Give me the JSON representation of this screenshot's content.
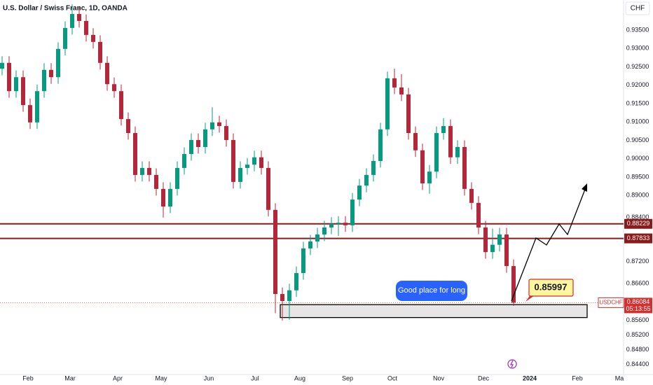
{
  "chart_data": {
    "type": "candlestick",
    "title": "U.S. Dollar / Swiss Franc, 1D, OANDA",
    "currency": "CHF",
    "up_color": "#089981",
    "down_color": "#b2283a",
    "open": [
      0.9245,
      0.9261,
      0.9184,
      0.9222,
      0.9146,
      0.9099,
      0.9184,
      0.9242,
      0.9222,
      0.9299,
      0.9356,
      0.9394,
      0.9375,
      0.9337,
      0.9318,
      0.9261,
      0.9203,
      0.9184,
      0.9108,
      0.907,
      0.8956,
      0.8975,
      0.8956,
      0.8918,
      0.887,
      0.8918,
      0.8975,
      0.9013,
      0.9051,
      0.9032,
      0.908,
      0.9099,
      0.9089,
      0.9051,
      0.8937,
      0.8975,
      0.8984,
      0.9004,
      0.8975,
      0.8861,
      0.8632,
      0.8613,
      0.8642,
      0.8689,
      0.8756,
      0.8775,
      0.8794,
      0.8813,
      0.8823,
      0.8826,
      0.8819,
      0.8889,
      0.8927,
      0.8956,
      0.8994,
      0.908,
      0.9219,
      0.9194,
      0.9175,
      0.907,
      0.9023,
      0.8933,
      0.8965,
      0.907,
      0.9089,
      0.9004,
      0.9032,
      0.8918,
      0.888,
      0.8813,
      0.8746,
      0.8766,
      0.8794,
      0.8708
    ],
    "high": [
      0.9279,
      0.9279,
      0.924,
      0.924,
      0.9164,
      0.9202,
      0.926,
      0.926,
      0.9317,
      0.9374,
      0.942,
      0.9412,
      0.9393,
      0.9355,
      0.9336,
      0.9279,
      0.9221,
      0.9202,
      0.9126,
      0.9088,
      0.8993,
      0.8993,
      0.8974,
      0.8936,
      0.8936,
      0.8993,
      0.9031,
      0.9069,
      0.9069,
      0.9098,
      0.914,
      0.9117,
      0.9107,
      0.9069,
      0.8993,
      0.9002,
      0.9022,
      0.9022,
      0.8993,
      0.8879,
      0.865,
      0.866,
      0.8707,
      0.8774,
      0.8793,
      0.8812,
      0.8831,
      0.8841,
      0.8844,
      0.8844,
      0.8907,
      0.8945,
      0.8974,
      0.9012,
      0.9098,
      0.9237,
      0.9245,
      0.923,
      0.9193,
      0.9088,
      0.9041,
      0.8983,
      0.9088,
      0.911,
      0.9107,
      0.905,
      0.905,
      0.8936,
      0.8898,
      0.8831,
      0.881,
      0.8812,
      0.8812,
      0.8726
    ],
    "low": [
      0.9227,
      0.9166,
      0.9166,
      0.9128,
      0.9081,
      0.9081,
      0.9166,
      0.9204,
      0.9204,
      0.9281,
      0.9338,
      0.9357,
      0.9319,
      0.93,
      0.9243,
      0.9185,
      0.9166,
      0.909,
      0.9052,
      0.8938,
      0.8938,
      0.8938,
      0.89,
      0.884,
      0.8852,
      0.89,
      0.8957,
      0.8995,
      0.9014,
      0.9014,
      0.9062,
      0.9071,
      0.9033,
      0.8919,
      0.8919,
      0.8957,
      0.8966,
      0.8957,
      0.8843,
      0.858,
      0.856,
      0.8562,
      0.8624,
      0.8671,
      0.8738,
      0.8757,
      0.8776,
      0.8795,
      0.879,
      0.8801,
      0.8801,
      0.8871,
      0.8909,
      0.8938,
      0.8976,
      0.9062,
      0.9176,
      0.9157,
      0.9052,
      0.9005,
      0.8915,
      0.8905,
      0.8947,
      0.9052,
      0.8986,
      0.8986,
      0.89,
      0.8862,
      0.8795,
      0.8728,
      0.8728,
      0.8748,
      0.869,
      0.85997
    ],
    "close": [
      0.9261,
      0.9184,
      0.9222,
      0.9146,
      0.9099,
      0.9184,
      0.9242,
      0.9222,
      0.9299,
      0.9356,
      0.9394,
      0.9375,
      0.9337,
      0.9318,
      0.9261,
      0.9203,
      0.9184,
      0.9108,
      0.907,
      0.8956,
      0.8975,
      0.8956,
      0.8918,
      0.887,
      0.8918,
      0.8975,
      0.9013,
      0.9051,
      0.9032,
      0.908,
      0.9099,
      0.9089,
      0.9051,
      0.8937,
      0.8975,
      0.8984,
      0.9004,
      0.8975,
      0.8861,
      0.8632,
      0.8613,
      0.8642,
      0.8689,
      0.8756,
      0.8775,
      0.8794,
      0.8813,
      0.8823,
      0.8826,
      0.8819,
      0.8889,
      0.8927,
      0.8956,
      0.8994,
      0.908,
      0.9219,
      0.9194,
      0.9175,
      0.907,
      0.9023,
      0.8933,
      0.8965,
      0.907,
      0.9089,
      0.9004,
      0.9032,
      0.8918,
      0.888,
      0.8813,
      0.8746,
      0.8766,
      0.8794,
      0.8708,
      0.86084
    ],
    "ylim": [
      0.8413,
      0.9432
    ],
    "yticks": [
      {
        "value": 0.935,
        "label": "0.93500"
      },
      {
        "value": 0.93,
        "label": "0.93000"
      },
      {
        "value": 0.925,
        "label": "0.92500"
      },
      {
        "value": 0.92,
        "label": "0.92000"
      },
      {
        "value": 0.915,
        "label": "0.91500"
      },
      {
        "value": 0.91,
        "label": "0.91000"
      },
      {
        "value": 0.905,
        "label": "0.90500"
      },
      {
        "value": 0.9,
        "label": "0.90000"
      },
      {
        "value": 0.895,
        "label": "0.89500"
      },
      {
        "value": 0.89,
        "label": "0.89000"
      },
      {
        "value": 0.884,
        "label": "0.88400"
      },
      {
        "value": 0.872,
        "label": "0.87200"
      },
      {
        "value": 0.866,
        "label": "0.86600"
      },
      {
        "value": 0.856,
        "label": "0.85600"
      },
      {
        "value": 0.852,
        "label": "0.85200"
      },
      {
        "value": 0.848,
        "label": "0.84800"
      },
      {
        "value": 0.844,
        "label": "0.84400"
      }
    ],
    "xlabels": [
      "Feb",
      "Mar",
      "Apr",
      "May",
      "Jun",
      "Jul",
      "Aug",
      "Sep",
      "Oct",
      "Nov",
      "Dec",
      "2024",
      "Feb",
      "Ma"
    ],
    "levels": [
      {
        "value": 0.88229,
        "label": "0.88229"
      },
      {
        "value": 0.87833,
        "label": "0.87833"
      }
    ],
    "current_price": {
      "symbol": "USDCHF",
      "value": 0.86084,
      "label": "0.86084",
      "countdown": "05:13:55"
    },
    "zone": {
      "top": 0.8603,
      "bottom": 0.8568
    },
    "annotations": [
      "Good place for long",
      "0.85997"
    ]
  }
}
